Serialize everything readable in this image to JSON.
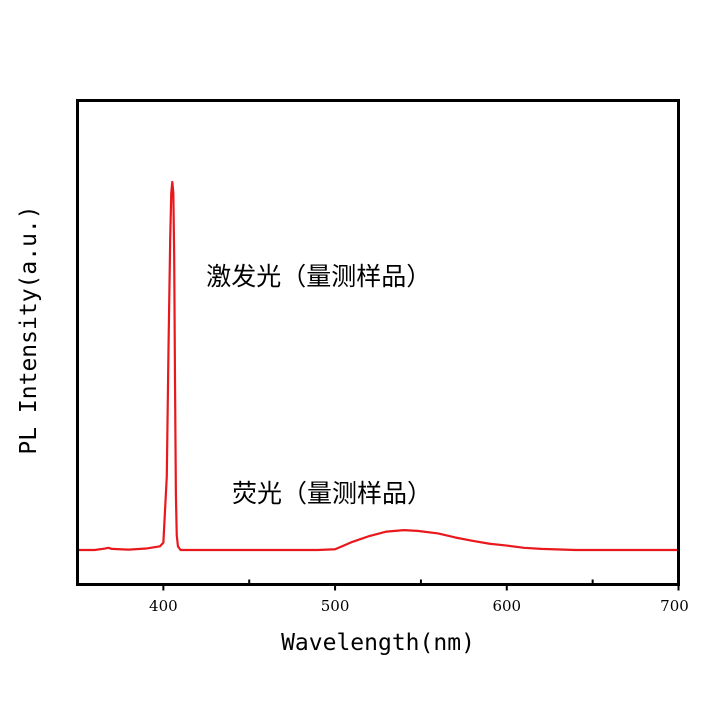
{
  "chart_data": {
    "type": "line",
    "title": "",
    "xlabel": "Wavelength(nm)",
    "ylabel": "PL Intensity(a.u.)",
    "xlim": [
      350,
      700
    ],
    "ylim": [
      0,
      1.0
    ],
    "x_ticks": [
      400,
      500,
      600,
      700
    ],
    "x_tick_labels": [
      "400",
      "500",
      "600",
      "700"
    ],
    "y_tick_labels": [],
    "grid": false,
    "legend": "none",
    "series": [
      {
        "color": "#e8181c",
        "x": [
          350,
          360,
          366,
          368,
          370,
          380,
          390,
          398,
          400,
          402,
          403,
          404,
          404.6,
          405.2,
          405.8,
          406.3,
          406.8,
          407.3,
          407.8,
          408.5,
          410,
          415,
          420,
          450,
          490,
          500,
          505,
          510,
          520,
          530,
          540,
          548,
          560,
          570,
          580,
          590,
          600,
          610,
          620,
          640,
          660,
          700
        ],
        "y": [
          0.0,
          0.0,
          0.004,
          0.006,
          0.003,
          0.001,
          0.004,
          0.01,
          0.02,
          0.2,
          0.55,
          0.85,
          0.97,
          1.0,
          0.97,
          0.8,
          0.45,
          0.15,
          0.04,
          0.01,
          0.0,
          0.0,
          0.0,
          0.0,
          0.0,
          0.002,
          0.012,
          0.022,
          0.038,
          0.05,
          0.054,
          0.052,
          0.045,
          0.034,
          0.025,
          0.017,
          0.012,
          0.006,
          0.003,
          0.0,
          0.0,
          0.0
        ]
      }
    ],
    "annotations": [
      {
        "text": "激发光（量测样品）",
        "x": 425,
        "y": 0.72
      },
      {
        "text": "荧光（量测样品）",
        "x": 440,
        "y": 0.13
      }
    ]
  }
}
